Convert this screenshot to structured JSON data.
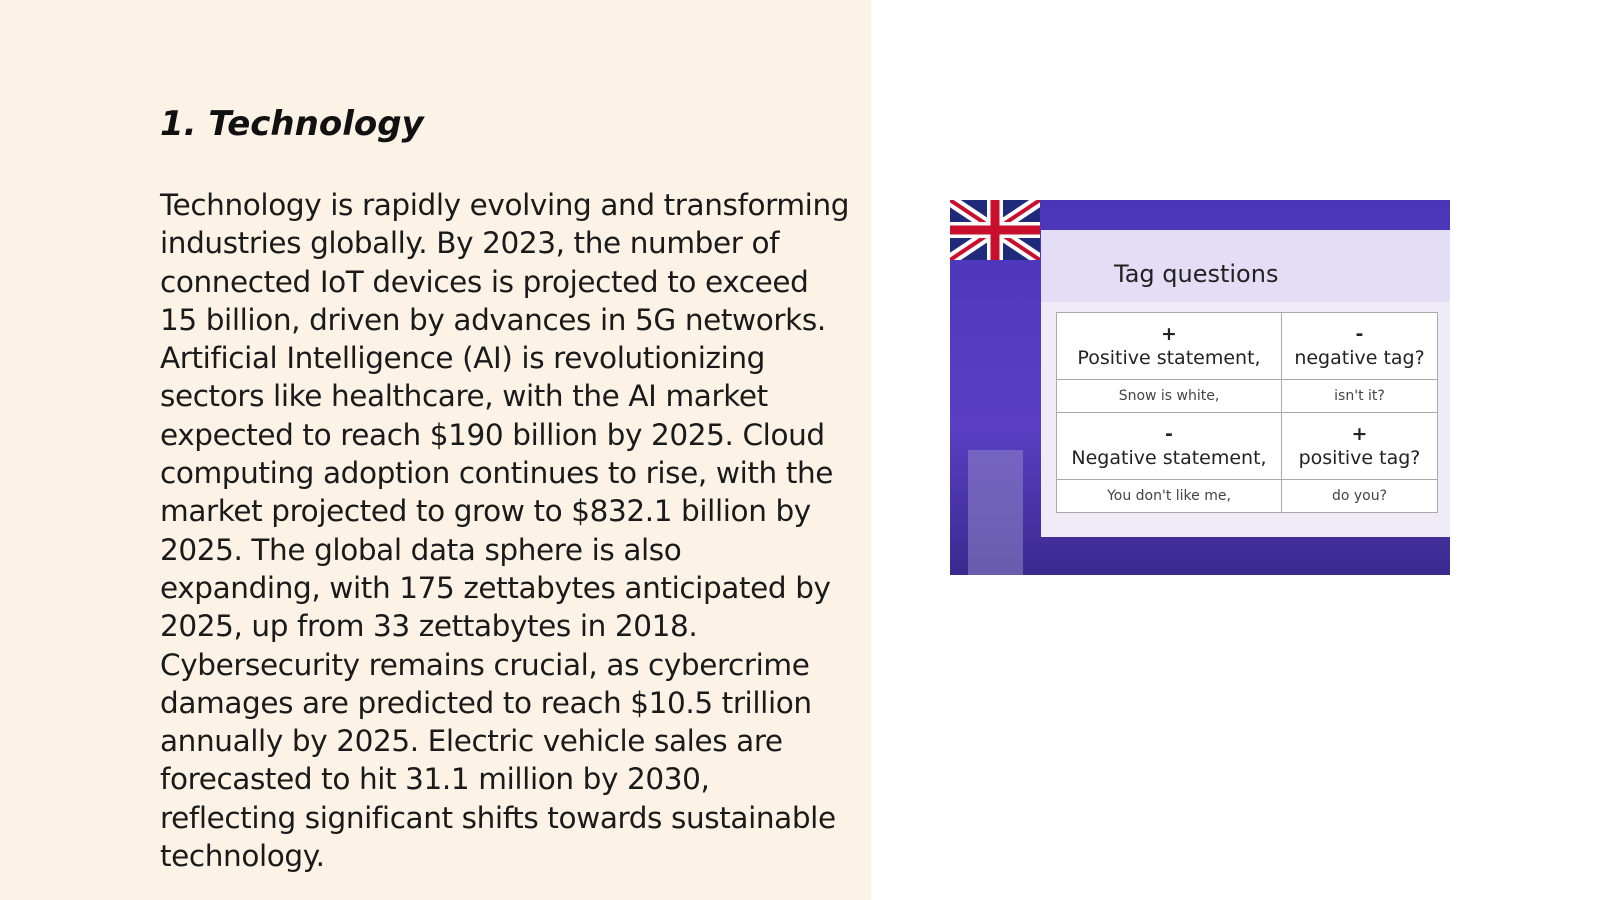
{
  "slide": {
    "heading": "1. Technology",
    "paragraph": "Technology is rapidly evolving and transforming industries globally. By 2023, the number of connected IoT devices is projected to exceed 15 billion, driven by advances in 5G networks. Artificial Intelligence (AI) is revolutionizing sectors like healthcare, with the AI market expected to reach $190 billion by 2025. Cloud computing adoption continues to rise, with the market projected to grow to $832.1 billion by 2025. The global data sphere is also expanding, with 175 zettabytes anticipated by 2025, up from 33 zettabytes in 2018. Cybersecurity remains crucial, as cybercrime damages are predicted to reach $10.5 trillion annually by 2025. Electric vehicle sales are forecasted to hit 31.1 million by 2030, reflecting significant shifts towards sustainable technology.",
    "image": {
      "title": "Tag questions",
      "table": {
        "rows": [
          [
            {
              "sign": "+",
              "text": "Positive statement,"
            },
            {
              "sign": "-",
              "text": "negative tag?"
            }
          ],
          [
            {
              "text": "Snow is white,"
            },
            {
              "text": "isn't it?"
            }
          ],
          [
            {
              "sign": "-",
              "text": "Negative statement,"
            },
            {
              "sign": "+",
              "text": "positive tag?"
            }
          ],
          [
            {
              "text": "You don't like me,"
            },
            {
              "text": "do you?"
            }
          ]
        ]
      }
    }
  }
}
